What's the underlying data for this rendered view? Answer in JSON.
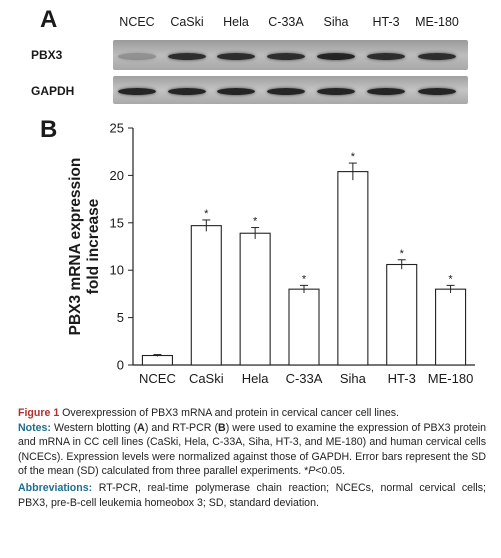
{
  "panel_a": {
    "letter": "A",
    "lanes": [
      "NCEC",
      "CaSki",
      "Hela",
      "C-33A",
      "Siha",
      "HT-3",
      "ME-180"
    ],
    "rows": [
      {
        "label": "PBX3",
        "band_intensity": [
          0.25,
          0.85,
          0.85,
          0.85,
          0.9,
          0.85,
          0.85
        ]
      },
      {
        "label": "GAPDH",
        "band_intensity": [
          0.9,
          0.9,
          0.9,
          0.9,
          0.9,
          0.9,
          0.9
        ]
      }
    ]
  },
  "panel_b": {
    "letter": "B"
  },
  "chart_data": {
    "type": "bar",
    "categories": [
      "NCEC",
      "CaSki",
      "Hela",
      "C-33A",
      "Siha",
      "HT-3",
      "ME-180"
    ],
    "values": [
      1.0,
      14.7,
      13.9,
      8.0,
      20.4,
      10.6,
      8.0
    ],
    "errors": [
      0.1,
      0.6,
      0.6,
      0.4,
      0.9,
      0.5,
      0.4
    ],
    "significant": [
      false,
      true,
      true,
      true,
      true,
      true,
      true
    ],
    "marker": "*",
    "ylabel_line1": "PBX3 mRNA expression",
    "ylabel_line2": "fold increase",
    "ylim": [
      0,
      25
    ],
    "yticks": [
      0,
      5,
      10,
      15,
      20,
      25
    ],
    "grid": false
  },
  "caption": {
    "figure_label": "Figure 1",
    "title": "Overexpression of PBX3 mRNA and protein in cervical cancer cell lines.",
    "notes_heading": "Notes:",
    "notes_parts": [
      "Western blotting (",
      "A",
      ") and RT-PCR (",
      "B",
      ") were used to examine the expression of PBX3 protein and mRNA in CC cell lines (CaSki, Hela, C-33A, Siha, HT-3, and ME-180) and human cervical cells (NCECs). Expression levels were normalized against those of GAPDH. Error bars represent the SD of the mean (SD) calculated from three parallel experiments. *",
      "P",
      "<0.05."
    ],
    "abbr_heading": "Abbreviations:",
    "abbr_text": "RT-PCR, real-time polymerase chain reaction; NCECs, normal cervical cells; PBX3, pre-B-cell leukemia homeobox 3; SD, standard deviation."
  }
}
